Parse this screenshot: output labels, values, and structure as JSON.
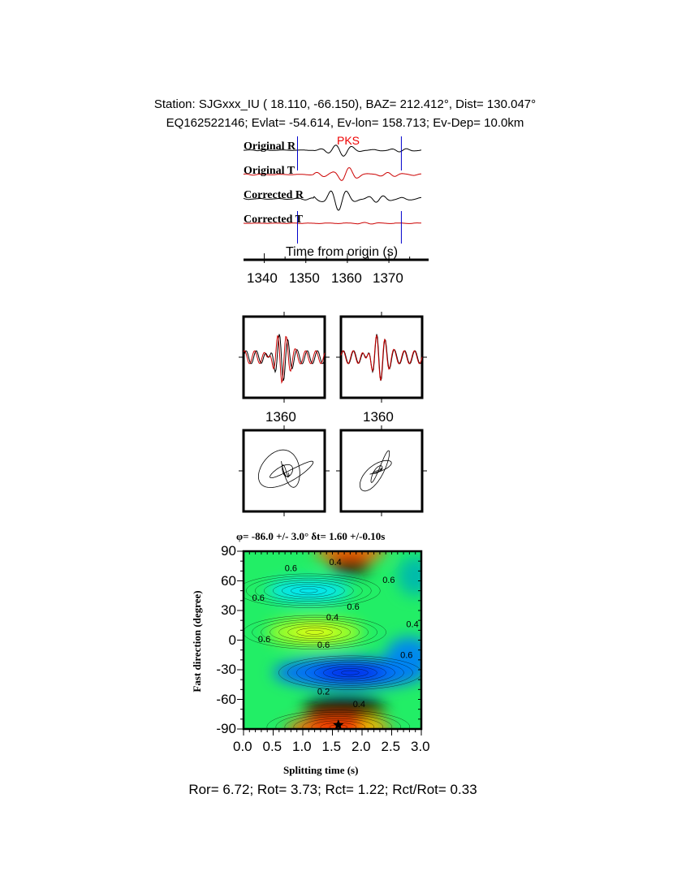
{
  "header": {
    "line1": "Station: SJGxxx_IU (  18.110,  -66.150), BAZ=  212.412°, Dist=  130.047°",
    "line2": "EQ162522146; Evlat= -54.614, Ev-lon= 158.713; Ev-Dep= 10.0km"
  },
  "chart_data": [
    {
      "type": "line",
      "title": "",
      "phase_label": "PKS",
      "xlabel": "Time from origin (s)",
      "xlim": [
        1335,
        1378
      ],
      "xticks": [
        "1340",
        "1350",
        "1360",
        "1370"
      ],
      "window": [
        1348,
        1373
      ],
      "series": [
        {
          "name": "Original R",
          "color": "#000000"
        },
        {
          "name": "Original T",
          "color": "#cc0000"
        },
        {
          "name": "Corrected R",
          "color": "#000000"
        },
        {
          "name": "Corrected T",
          "color": "#cc0000"
        }
      ]
    },
    {
      "type": "line",
      "panels": [
        "original-components",
        "corrected-components"
      ],
      "xtick_label": "1360",
      "colors": [
        "#000000",
        "#cc0000"
      ]
    },
    {
      "type": "scatter",
      "panels": [
        "original-particle-motion",
        "corrected-particle-motion"
      ]
    },
    {
      "type": "heatmap",
      "title": "φ= -86.0 +/- 3.0° δt= 1.60 +/-0.10s",
      "xlabel": "Splitting time (s)",
      "ylabel": "Fast direction (degree)",
      "xlim": [
        0,
        3
      ],
      "ylim": [
        -90,
        90
      ],
      "xticks": [
        "0.0",
        "0.5",
        "1.0",
        "1.5",
        "2.0",
        "2.5",
        "3.0"
      ],
      "yticks": [
        "90",
        "60",
        "30",
        "0",
        "-30",
        "-60",
        "-90"
      ],
      "contour_labels": [
        "0.4",
        "0.6",
        "0.6",
        "0.6",
        "0.6",
        "0.4",
        "0.4",
        "0.6",
        "0.6",
        "0.6",
        "0.2",
        "0.4"
      ],
      "best_fit": {
        "dt": 1.6,
        "phi": -86.0
      },
      "colormap": [
        "#ff0000",
        "#ffff00",
        "#00ff66",
        "#00ffff",
        "#0000ff"
      ]
    }
  ],
  "footer": "Ror= 6.72; Rot= 3.73; Rct= 1.22; Rct/Rot= 0.33"
}
